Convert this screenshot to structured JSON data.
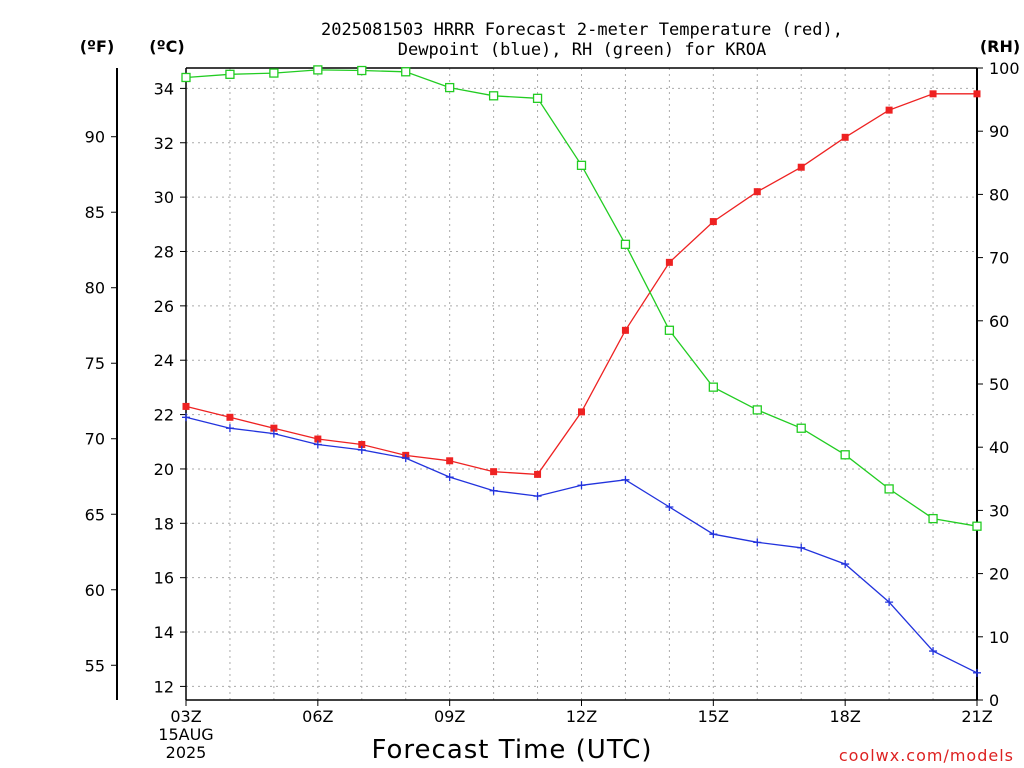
{
  "chart_data": {
    "type": "line",
    "title_line1": "2025081503 HRRR Forecast 2-meter Temperature (red),",
    "title_line2": "Dewpoint (blue), RH (green) for KROA",
    "xlabel": "Forecast Time (UTC)",
    "unit_left_f": "(ºF)",
    "unit_left_c": "(ºC)",
    "unit_right": "(RH)",
    "credit": "coolwx.com/models",
    "date_lines": [
      "15AUG",
      "2025"
    ],
    "x": [
      3,
      4,
      5,
      6,
      7,
      8,
      9,
      10,
      11,
      12,
      13,
      14,
      15,
      16,
      17,
      18,
      19,
      20,
      21
    ],
    "xlim": [
      3,
      21
    ],
    "x_ticks": [
      {
        "hour": 3,
        "label": "03Z"
      },
      {
        "hour": 6,
        "label": "06Z"
      },
      {
        "hour": 9,
        "label": "09Z"
      },
      {
        "hour": 12,
        "label": "12Z"
      },
      {
        "hour": 15,
        "label": "15Z"
      },
      {
        "hour": 18,
        "label": "18Z"
      },
      {
        "hour": 21,
        "label": "21Z"
      }
    ],
    "celsius_ticks": [
      "12",
      "14",
      "16",
      "18",
      "20",
      "22",
      "24",
      "26",
      "28",
      "30",
      "32",
      "34"
    ],
    "fahrenheit_ticks": [
      "55",
      "60",
      "65",
      "70",
      "75",
      "80",
      "85",
      "90"
    ],
    "rh_ticks": [
      "0",
      "10",
      "20",
      "30",
      "40",
      "50",
      "60",
      "70",
      "80",
      "90",
      "100"
    ],
    "ylim_c": [
      11.5,
      34.75
    ],
    "ylim_rh": [
      0,
      100
    ],
    "series": [
      {
        "name": "Temperature",
        "units": "C",
        "color": "#ee2222",
        "marker": "filled-square",
        "values": [
          22.3,
          21.9,
          21.5,
          21.1,
          20.9,
          20.5,
          20.3,
          19.9,
          19.8,
          22.1,
          25.1,
          27.6,
          29.1,
          30.2,
          31.1,
          32.2,
          33.2,
          33.8,
          33.8
        ]
      },
      {
        "name": "Dewpoint",
        "units": "C",
        "color": "#2233dd",
        "marker": "plus",
        "values": [
          21.9,
          21.5,
          21.3,
          20.9,
          20.7,
          20.4,
          19.7,
          19.2,
          19.0,
          19.4,
          19.6,
          18.6,
          17.6,
          17.3,
          17.1,
          16.5,
          15.1,
          13.3,
          12.5
        ]
      },
      {
        "name": "RH",
        "units": "%",
        "color": "#22cc22",
        "marker": "open-square",
        "values": [
          98.5,
          99.0,
          99.2,
          99.7,
          99.6,
          99.4,
          96.9,
          95.6,
          95.2,
          84.6,
          72.1,
          58.5,
          49.5,
          45.9,
          43.0,
          38.8,
          33.4,
          28.7,
          27.5
        ]
      }
    ],
    "grid": true
  }
}
